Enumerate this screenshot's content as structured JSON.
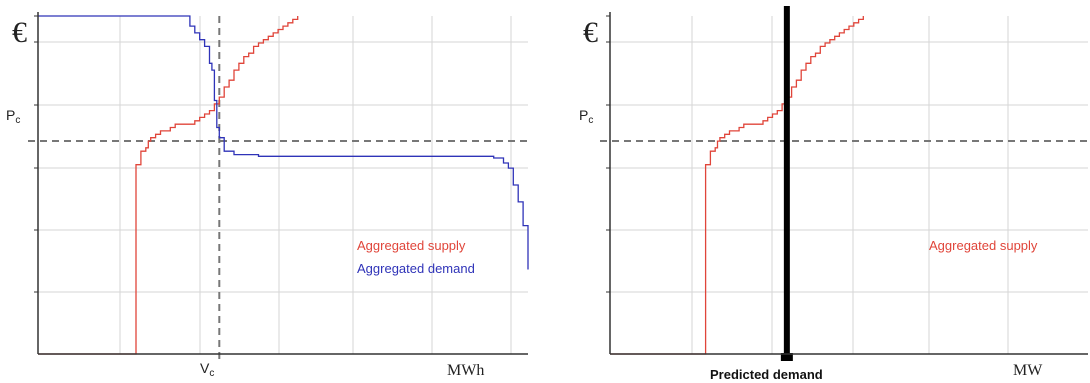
{
  "colors": {
    "supply": "#e0453a",
    "demand": "#2f33b8",
    "grid": "#d6d6d6",
    "axis": "#333333",
    "dashed": "#777777",
    "predicted": "#000000"
  },
  "chart_data": [
    {
      "type": "line",
      "title": "",
      "y_axis_symbol": "€",
      "price_label": "P",
      "price_label_sub": "c",
      "volume_label": "V",
      "volume_label_sub": "c",
      "x_unit_label": "MWh",
      "legend": [
        "Aggregated supply",
        "Aggregated demand"
      ],
      "legend_position": "center-right",
      "grid": true,
      "xlim": [
        0,
        100
      ],
      "ylim": [
        0,
        100
      ],
      "clearing": {
        "x": 37,
        "y": 63
      },
      "series": [
        {
          "name": "Aggregated supply",
          "x": [
            0,
            20,
            20,
            21,
            22,
            22.5,
            23,
            24,
            25,
            27,
            28,
            30,
            32,
            33,
            34,
            35,
            36,
            37,
            38,
            39,
            40,
            41,
            42,
            43,
            44,
            45,
            46,
            47,
            48,
            49,
            50,
            51,
            52,
            53
          ],
          "y": [
            0,
            0,
            56,
            60,
            61,
            63,
            64,
            65,
            66,
            67,
            68,
            68,
            69,
            70,
            71,
            72,
            74,
            76,
            79,
            81,
            84,
            86,
            88,
            89,
            91,
            92,
            93,
            94,
            95,
            96,
            97,
            98,
            99,
            100
          ]
        },
        {
          "name": "Aggregated demand",
          "x": [
            0,
            30,
            31,
            32,
            33,
            34,
            35,
            35.5,
            36,
            36.5,
            37,
            38,
            40,
            45,
            60,
            80,
            90,
            93,
            95,
            96,
            97,
            98,
            99,
            100
          ],
          "y": [
            100,
            100,
            97,
            95,
            93,
            91,
            86,
            84,
            75,
            67,
            64,
            60,
            59,
            58.5,
            58.5,
            58.5,
            58.5,
            58,
            56.5,
            55,
            50,
            45,
            38,
            25
          ]
        }
      ]
    },
    {
      "type": "line",
      "title": "",
      "y_axis_symbol": "€",
      "price_label": "P",
      "price_label_sub": "c",
      "x_unit_label": "MW",
      "predicted_label": "Predicted demand",
      "legend": [
        "Aggregated supply"
      ],
      "legend_position": "center-right",
      "grid": true,
      "xlim": [
        0,
        100
      ],
      "ylim": [
        0,
        100
      ],
      "clearing": {
        "x": 37,
        "y": 63
      },
      "predicted_demand_x": 37,
      "series": [
        {
          "name": "Aggregated supply",
          "x": [
            0,
            20,
            20,
            21,
            22,
            22.5,
            23,
            24,
            25,
            27,
            28,
            30,
            32,
            33,
            34,
            35,
            36,
            37,
            38,
            39,
            40,
            41,
            42,
            43,
            44,
            45,
            46,
            47,
            48,
            49,
            50,
            51,
            52,
            53
          ],
          "y": [
            0,
            0,
            56,
            60,
            61,
            63,
            64,
            65,
            66,
            67,
            68,
            68,
            69,
            70,
            71,
            72,
            74,
            76,
            79,
            81,
            84,
            86,
            88,
            89,
            91,
            92,
            93,
            94,
            95,
            96,
            97,
            98,
            99,
            100
          ]
        }
      ]
    }
  ]
}
